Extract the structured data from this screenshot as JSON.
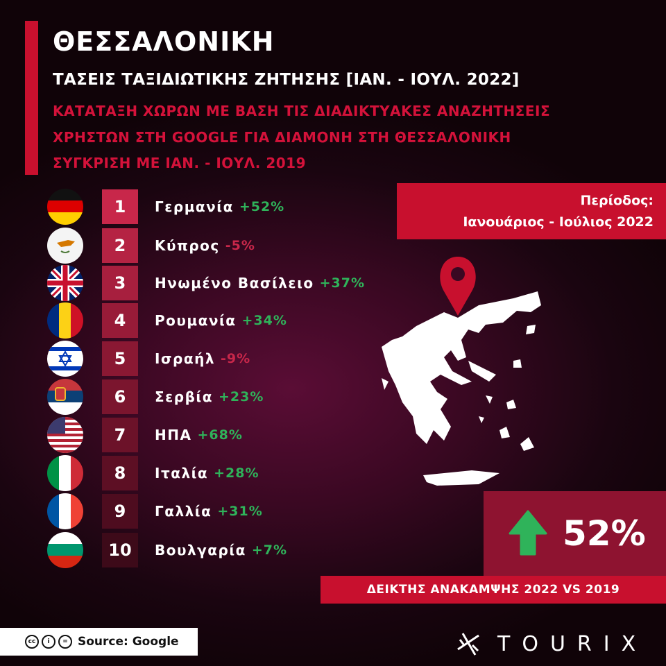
{
  "header": {
    "title": "ΘΕΣΣΑΛΟΝΙΚΗ",
    "subtitle": "ΤΑΣΕΙΣ ΤΑΞΙΔΙΩΤΙΚΗΣ ΖΗΤΗΣΗΣ [ΙΑΝ. - ΙΟΥΛ. 2022]",
    "lines": [
      "ΚΑΤΑΤΑΞΗ ΧΩΡΩΝ ΜΕ ΒΑΣΗ ΤΙΣ ΔΙΑΔΙΚΤΥΑΚΕΣ ΑΝΑΖΗΤΗΣΕΙΣ",
      "ΧΡΗΣΤΩΝ ΣΤΗ GOOGLE ΓΙΑ ΔΙΑΜΟΝΗ ΣΤΗ ΘΕΣΣΑΛΟΝΙΚΗ",
      "ΣΥΓΚΡΙΣΗ ΜΕ ΙΑΝ. - ΙΟΥΛ. 2019"
    ]
  },
  "ranking": [
    {
      "rank": "1",
      "country": "Γερμανία",
      "change": "+52%",
      "flag": "germany"
    },
    {
      "rank": "2",
      "country": "Κύπρος",
      "change": "-5%",
      "flag": "cyprus"
    },
    {
      "rank": "3",
      "country": "Ηνωμένο Βασίλειο",
      "change": "+37%",
      "flag": "uk"
    },
    {
      "rank": "4",
      "country": "Ρουμανία",
      "change": "+34%",
      "flag": "romania"
    },
    {
      "rank": "5",
      "country": "Ισραήλ",
      "change": "-9%",
      "flag": "israel"
    },
    {
      "rank": "6",
      "country": "Σερβία",
      "change": "+23%",
      "flag": "serbia"
    },
    {
      "rank": "7",
      "country": "ΗΠΑ",
      "change": "+68%",
      "flag": "usa"
    },
    {
      "rank": "8",
      "country": "Ιταλία",
      "change": "+28%",
      "flag": "italy"
    },
    {
      "rank": "9",
      "country": "Γαλλία",
      "change": "+31%",
      "flag": "france"
    },
    {
      "rank": "10",
      "country": "Βουλγαρία",
      "change": "+7%",
      "flag": "bulgaria"
    }
  ],
  "period": {
    "label": "Περίοδος:",
    "value": "Ιανουάριος - Ιούλιος 2022"
  },
  "recovery": {
    "value": "52%",
    "icon": "arrow-up-icon",
    "label": "ΔΕΙΚΤΗΣ ΑΝΑΚΑΜΨΗΣ 2022 VS 2019"
  },
  "source": "Source: Google",
  "logo": "TOURIX",
  "colors": {
    "accent": "#c8102e",
    "positive": "#2fb35a",
    "negative": "#c8274a",
    "recovery_box": "#8e1330"
  }
}
